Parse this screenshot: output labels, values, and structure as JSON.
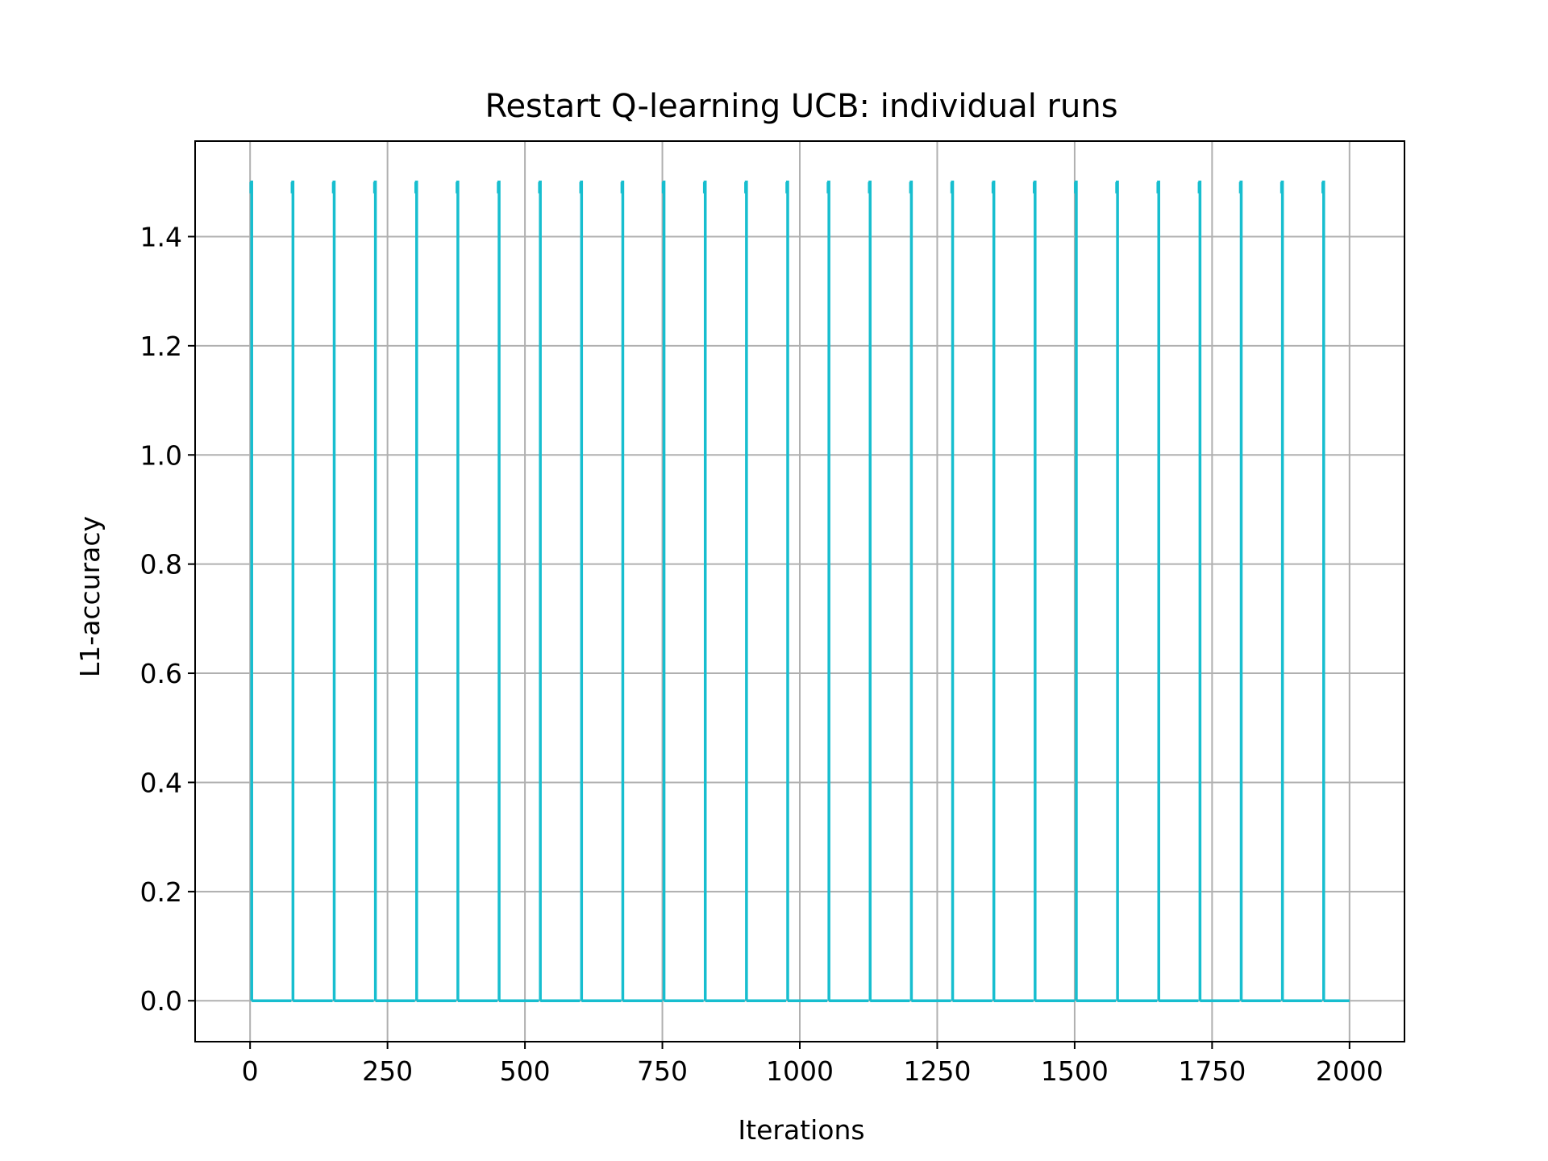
{
  "chart_data": {
    "type": "line",
    "title": "Restart Q-learning UCB: individual runs",
    "xlabel": "Iterations",
    "ylabel": "L1-accuracy",
    "xlim": [
      -100,
      2100
    ],
    "ylim": [
      -0.075,
      1.575
    ],
    "xticks": [
      0,
      250,
      500,
      750,
      1000,
      1250,
      1500,
      1750,
      2000
    ],
    "yticks": [
      0.0,
      0.2,
      0.4,
      0.6,
      0.8,
      1.0,
      1.2,
      1.4
    ],
    "ytick_labels": [
      "0.0",
      "0.2",
      "0.4",
      "0.6",
      "0.8",
      "1.0",
      "1.2",
      "1.4"
    ],
    "grid": true,
    "series": [
      {
        "color": "#17becf",
        "restart_period": 75,
        "restart_starts": [
          0,
          75,
          150,
          225,
          300,
          375,
          450,
          525,
          600,
          675,
          750,
          825,
          900,
          975,
          1050,
          1125,
          1200,
          1275,
          1350,
          1425,
          1500,
          1575,
          1650,
          1725,
          1800,
          1875,
          1950
        ],
        "peak_value": 1.5,
        "peak_duration": 3,
        "baseline_value": 0.0,
        "x_end": 2000
      }
    ]
  }
}
